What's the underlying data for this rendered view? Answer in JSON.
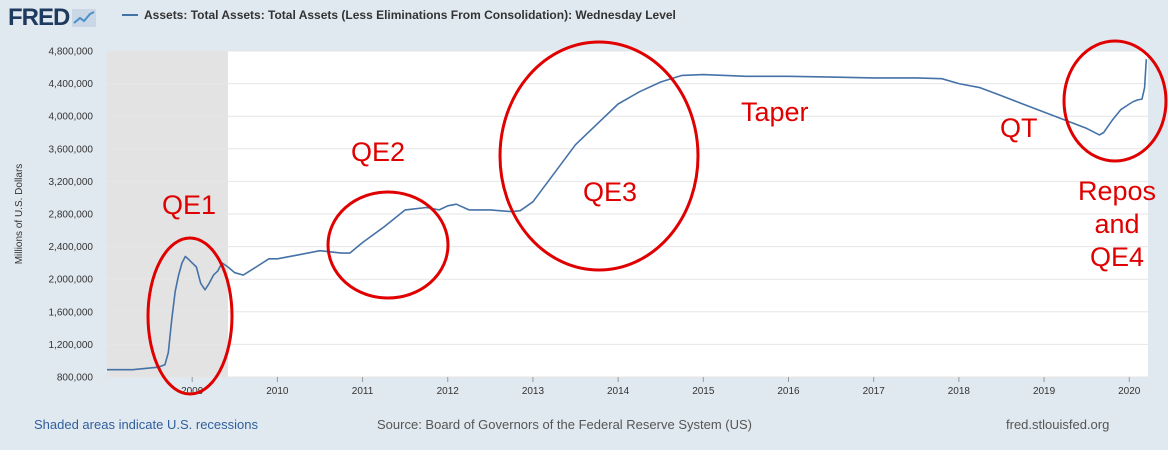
{
  "header": {
    "logo_text": "FRED",
    "series_title": "Assets: Total Assets: Total Assets (Less Eliminations From Consolidation): Wednesday Level",
    "line_color": "#4572a7"
  },
  "footer": {
    "recession_note": "Shaded areas indicate U.S. recessions",
    "source": "Source: Board of Governors of the Federal Reserve System (US)",
    "site": "fred.stlouisfed.org"
  },
  "annotations": {
    "color": "#e00000",
    "qe1": "QE1",
    "qe2": "QE2",
    "qe3": "QE3",
    "taper": "Taper",
    "qt": "QT",
    "repos_lines": [
      "Repos",
      "and",
      "QE4"
    ]
  },
  "chart_data": {
    "type": "line",
    "title": "Assets: Total Assets: Total Assets (Less Eliminations From Consolidation): Wednesday Level",
    "ylabel": "Millions of U.S. Dollars",
    "xlabel": "",
    "xlim": [
      2008.0,
      2020.22
    ],
    "ylim": [
      800000,
      4800000
    ],
    "yticks": [
      800000,
      1200000,
      1600000,
      2000000,
      2400000,
      2800000,
      3200000,
      3600000,
      4000000,
      4400000,
      4800000
    ],
    "ytick_labels": [
      "800,000",
      "1,200,000",
      "1,600,000",
      "2,000,000",
      "2,400,000",
      "2,800,000",
      "3,200,000",
      "3,600,000",
      "4,000,000",
      "4,400,000",
      "4,800,000"
    ],
    "xticks": [
      2009,
      2010,
      2011,
      2012,
      2013,
      2014,
      2015,
      2016,
      2017,
      2018,
      2019,
      2020
    ],
    "xtick_labels": [
      "2009",
      "2010",
      "2011",
      "2012",
      "2013",
      "2014",
      "2015",
      "2016",
      "2017",
      "2018",
      "2019",
      "2020"
    ],
    "recessions": [
      [
        2008.0,
        2009.42
      ]
    ],
    "grid": true,
    "series": [
      {
        "name": "Total Assets",
        "x": [
          2008.0,
          2008.3,
          2008.6,
          2008.68,
          2008.72,
          2008.76,
          2008.8,
          2008.84,
          2008.88,
          2008.92,
          2008.96,
          2009.0,
          2009.05,
          2009.1,
          2009.15,
          2009.2,
          2009.25,
          2009.3,
          2009.35,
          2009.42,
          2009.5,
          2009.6,
          2009.75,
          2009.9,
          2010.0,
          2010.25,
          2010.5,
          2010.75,
          2010.85,
          2011.0,
          2011.25,
          2011.5,
          2011.75,
          2011.9,
          2012.0,
          2012.1,
          2012.25,
          2012.5,
          2012.75,
          2012.85,
          2013.0,
          2013.25,
          2013.5,
          2013.75,
          2014.0,
          2014.25,
          2014.5,
          2014.75,
          2015.0,
          2015.5,
          2016.0,
          2016.5,
          2017.0,
          2017.5,
          2017.8,
          2018.0,
          2018.25,
          2018.5,
          2018.75,
          2019.0,
          2019.25,
          2019.5,
          2019.65,
          2019.7,
          2019.8,
          2019.9,
          2020.0,
          2020.05,
          2020.1,
          2020.15,
          2020.18,
          2020.2
        ],
        "values": [
          890000,
          890000,
          920000,
          950000,
          1100000,
          1500000,
          1850000,
          2050000,
          2200000,
          2280000,
          2240000,
          2200000,
          2150000,
          1950000,
          1870000,
          1950000,
          2050000,
          2100000,
          2200000,
          2150000,
          2080000,
          2050000,
          2150000,
          2250000,
          2250000,
          2300000,
          2350000,
          2320000,
          2320000,
          2450000,
          2640000,
          2850000,
          2880000,
          2850000,
          2900000,
          2920000,
          2850000,
          2850000,
          2830000,
          2840000,
          2950000,
          3300000,
          3650000,
          3900000,
          4150000,
          4300000,
          4420000,
          4500000,
          4510000,
          4490000,
          4490000,
          4480000,
          4470000,
          4470000,
          4460000,
          4400000,
          4350000,
          4250000,
          4150000,
          4050000,
          3950000,
          3850000,
          3770000,
          3800000,
          3950000,
          4080000,
          4150000,
          4180000,
          4200000,
          4210000,
          4350000,
          4700000
        ]
      }
    ]
  }
}
